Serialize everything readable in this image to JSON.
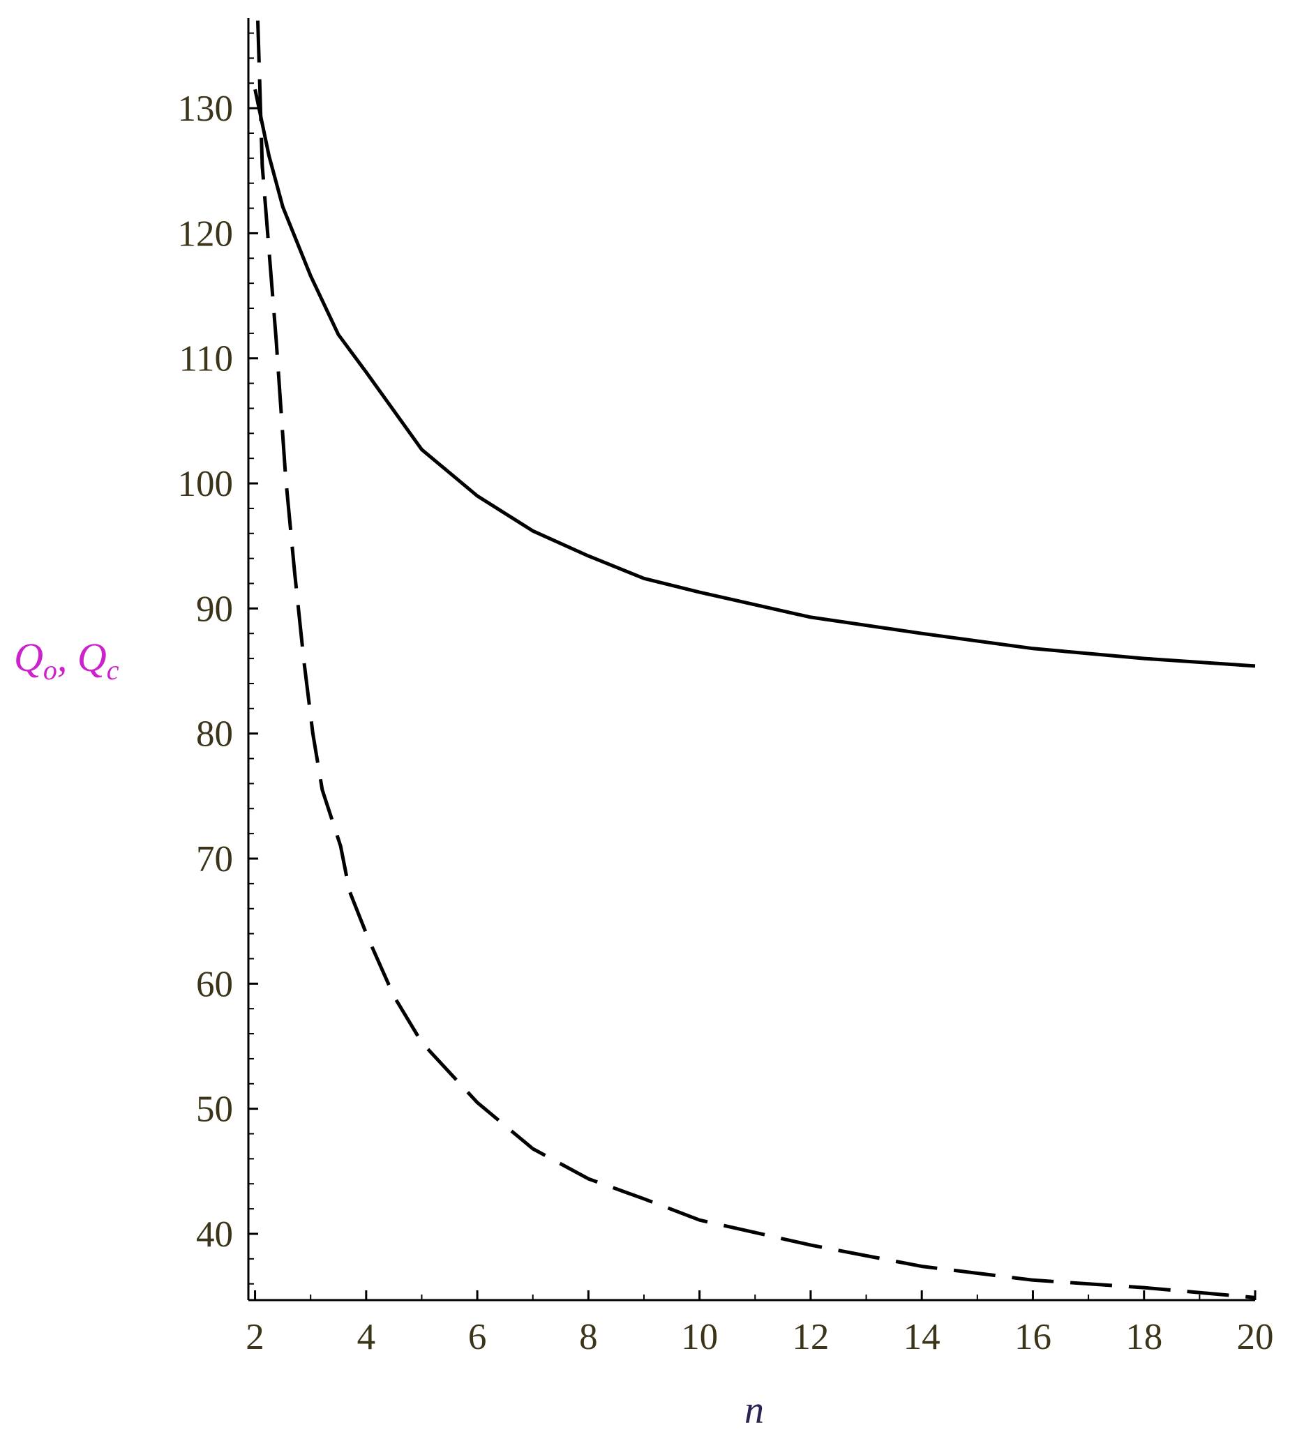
{
  "chart_data": {
    "type": "line",
    "x_label": "n",
    "y_label": "Qo, Qc",
    "series": [
      {
        "color": "#000000",
        "dashed": false,
        "x": [
          2.0,
          2.25,
          2.5,
          3,
          3.5,
          4,
          5,
          6,
          7,
          8,
          9,
          10,
          12,
          14,
          16,
          18,
          20
        ],
        "values": [
          131.5,
          126.2,
          122.1,
          116.6,
          111.9,
          108.9,
          102.7,
          99,
          96.2,
          94.2,
          92.4,
          91.3,
          89.3,
          88,
          86.8,
          86,
          85.4
        ]
      },
      {
        "color": "#000000",
        "dashed": true,
        "x": [
          2.05,
          2.13,
          2.38,
          2.55,
          2.71,
          2.88,
          3.04,
          3.21,
          3.54,
          3.7,
          4.03,
          4.5,
          5,
          6,
          7,
          8,
          9,
          10,
          12,
          14,
          16,
          18,
          20
        ],
        "values": [
          137,
          125.4,
          111.5,
          100.5,
          93,
          85.8,
          80,
          75.5,
          71,
          67.4,
          63.7,
          59,
          55.3,
          50.5,
          46.8,
          44.4,
          42.8,
          41.1,
          39.1,
          37.4,
          36.3,
          35.7,
          34.9
        ]
      }
    ],
    "xlim": [
      1.88,
      20
    ],
    "ylim": [
      34.7,
      137.2
    ],
    "xticks": [
      2,
      4,
      6,
      8,
      10,
      12,
      14,
      16,
      18,
      20
    ],
    "xminorticks": [
      3,
      5,
      7,
      9,
      11,
      13,
      15,
      17,
      19
    ],
    "yticks": [
      40,
      50,
      60,
      70,
      80,
      90,
      100,
      110,
      120,
      130
    ],
    "yminorticks": [
      36,
      38,
      42,
      44,
      46,
      48,
      52,
      54,
      56,
      58,
      62,
      64,
      66,
      68,
      72,
      74,
      76,
      78,
      82,
      84,
      86,
      88,
      92,
      94,
      96,
      98,
      102,
      104,
      106,
      108,
      112,
      114,
      116,
      118,
      122,
      124,
      126,
      128,
      132,
      134,
      136
    ],
    "grid": false
  }
}
